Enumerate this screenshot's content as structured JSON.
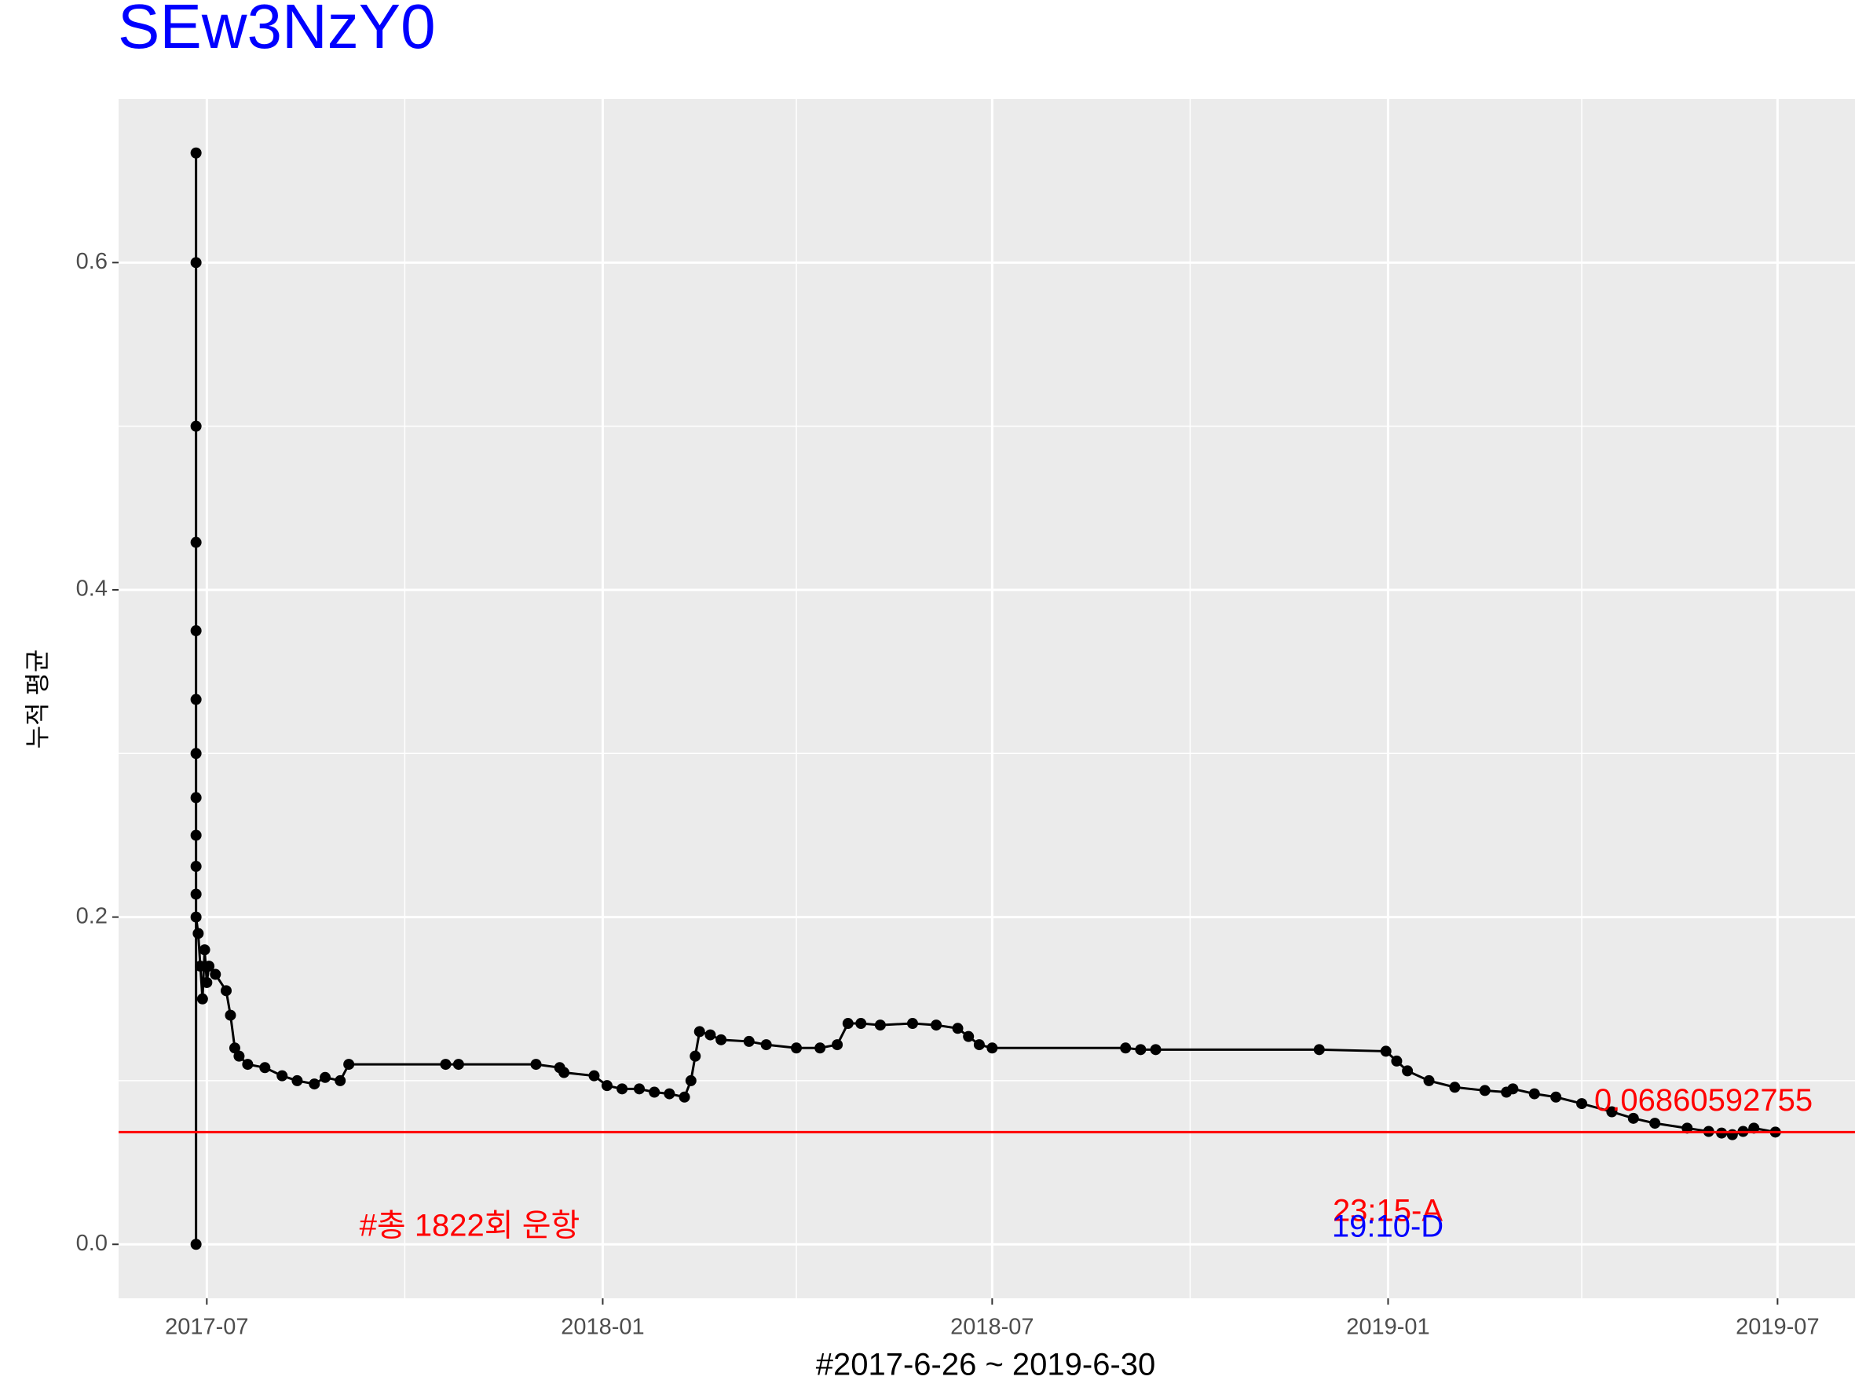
{
  "chart_data": {
    "type": "line",
    "title": "SEw3NzY0",
    "title_color": "#0000ff",
    "xlabel": "#2017-6-26 ~ 2019-6-30",
    "ylabel": "누적 평균",
    "color": "#000000",
    "x": [
      "2017-06-26",
      "2017-06-26",
      "2017-06-26",
      "2017-06-26",
      "2017-06-26",
      "2017-06-26",
      "2017-06-26",
      "2017-06-26",
      "2017-06-26",
      "2017-06-26",
      "2017-06-26",
      "2017-06-26",
      "2017-06-26",
      "2017-06-27",
      "2017-06-28",
      "2017-06-29",
      "2017-06-30",
      "2017-07-01",
      "2017-07-02",
      "2017-07-05",
      "2017-07-10",
      "2017-07-12",
      "2017-07-14",
      "2017-07-16",
      "2017-07-20",
      "2017-07-28",
      "2017-08-05",
      "2017-08-12",
      "2017-08-20",
      "2017-08-25",
      "2017-09-01",
      "2017-09-05",
      "2017-10-20",
      "2017-10-26",
      "2017-12-01",
      "2017-12-12",
      "2017-12-14",
      "2017-12-28",
      "2018-01-03",
      "2018-01-10",
      "2018-01-18",
      "2018-01-25",
      "2018-02-01",
      "2018-02-08",
      "2018-02-11",
      "2018-02-13",
      "2018-02-15",
      "2018-02-20",
      "2018-02-25",
      "2018-03-10",
      "2018-03-18",
      "2018-04-01",
      "2018-04-12",
      "2018-04-20",
      "2018-04-25",
      "2018-05-01",
      "2018-05-10",
      "2018-05-25",
      "2018-06-05",
      "2018-06-15",
      "2018-06-20",
      "2018-06-25",
      "2018-07-01",
      "2018-09-01",
      "2018-09-08",
      "2018-09-15",
      "2018-11-30",
      "2018-12-31",
      "2019-01-05",
      "2019-01-10",
      "2019-01-20",
      "2019-02-01",
      "2019-02-15",
      "2019-02-25",
      "2019-02-28",
      "2019-03-10",
      "2019-03-20",
      "2019-04-01",
      "2019-04-15",
      "2019-04-25",
      "2019-05-05",
      "2019-05-20",
      "2019-05-30",
      "2019-06-05",
      "2019-06-10",
      "2019-06-15",
      "2019-06-20",
      "2019-06-30"
    ],
    "values": [
      0,
      0.667,
      0.6,
      0.5,
      0.429,
      0.375,
      0.333,
      0.3,
      0.273,
      0.25,
      0.231,
      0.214,
      0.2,
      0.19,
      0.17,
      0.15,
      0.18,
      0.16,
      0.17,
      0.165,
      0.155,
      0.14,
      0.12,
      0.115,
      0.11,
      0.108,
      0.103,
      0.1,
      0.098,
      0.102,
      0.1,
      0.11,
      0.11,
      0.11,
      0.11,
      0.108,
      0.105,
      0.103,
      0.097,
      0.095,
      0.095,
      0.093,
      0.092,
      0.09,
      0.1,
      0.115,
      0.13,
      0.128,
      0.125,
      0.124,
      0.122,
      0.12,
      0.12,
      0.122,
      0.135,
      0.135,
      0.134,
      0.135,
      0.134,
      0.132,
      0.127,
      0.122,
      0.12,
      0.12,
      0.119,
      0.119,
      0.119,
      0.118,
      0.112,
      0.106,
      0.1,
      0.096,
      0.094,
      0.093,
      0.095,
      0.092,
      0.09,
      0.086,
      0.081,
      0.077,
      0.074,
      0.071,
      0.069,
      0.068,
      0.067,
      0.069,
      0.071,
      0.0686
    ],
    "xlim": [
      "2017-05-21",
      "2019-08-06"
    ],
    "xticks": [
      {
        "value": "2017-07-01",
        "label": "2017-07"
      },
      {
        "value": "2018-01-01",
        "label": "2018-01"
      },
      {
        "value": "2018-07-01",
        "label": "2018-07"
      },
      {
        "value": "2019-01-01",
        "label": "2019-01"
      },
      {
        "value": "2019-07-01",
        "label": "2019-07"
      }
    ],
    "minor_xticks": [
      "2017-10-01",
      "2018-04-01",
      "2018-10-01",
      "2019-04-01"
    ],
    "ylim": [
      -0.033,
      0.7
    ],
    "yticks": [
      {
        "value": 0,
        "label": "0.0"
      },
      0.2,
      0.4,
      0.6
    ],
    "minor_yticks": [
      0.1,
      0.3,
      0.5
    ],
    "grid": true,
    "hline": {
      "value": 0.06860592755,
      "label": "0.06860592755",
      "color": "#ff0000"
    },
    "annotations": [
      {
        "text": "#총 1822회 운항",
        "color": "#ff0000"
      },
      {
        "text": "23:15-A",
        "color": "#ff0000"
      },
      {
        "text": "19:10-D",
        "color": "#0000ff"
      }
    ]
  }
}
